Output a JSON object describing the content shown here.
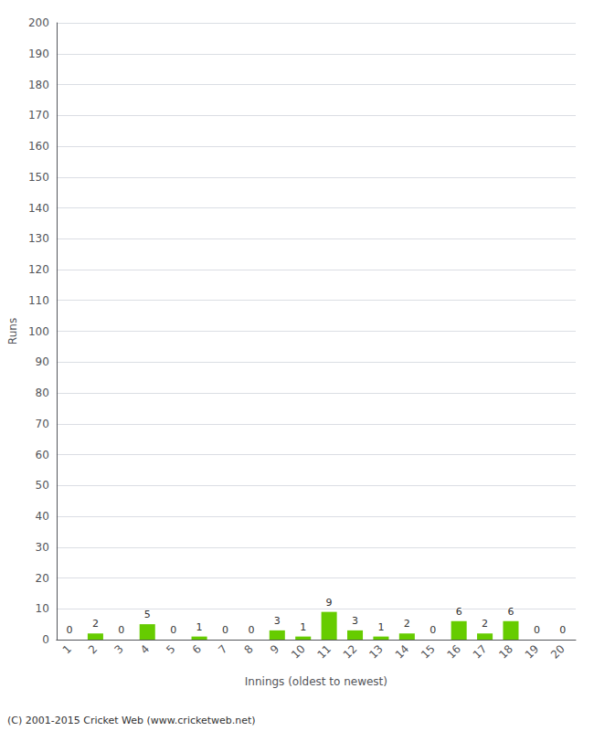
{
  "chart_data": {
    "type": "bar",
    "categories": [
      "1",
      "2",
      "3",
      "4",
      "5",
      "6",
      "7",
      "8",
      "9",
      "10",
      "11",
      "12",
      "13",
      "14",
      "15",
      "16",
      "17",
      "18",
      "19",
      "20"
    ],
    "values": [
      0,
      2,
      0,
      5,
      0,
      1,
      0,
      0,
      3,
      1,
      9,
      3,
      1,
      2,
      0,
      6,
      2,
      6,
      0,
      0
    ],
    "color": "#66cc00",
    "xlabel": "Innings (oldest to newest)",
    "ylabel": "Runs",
    "ylim": [
      0,
      200
    ],
    "yticks": [
      0,
      10,
      20,
      30,
      40,
      50,
      60,
      70,
      80,
      90,
      100,
      110,
      120,
      130,
      140,
      150,
      160,
      170,
      180,
      190,
      200
    ],
    "grid": true,
    "data_labels": true,
    "annotations": [
      "(C) 2001-2015 Cricket Web (www.cricketweb.net)"
    ]
  }
}
